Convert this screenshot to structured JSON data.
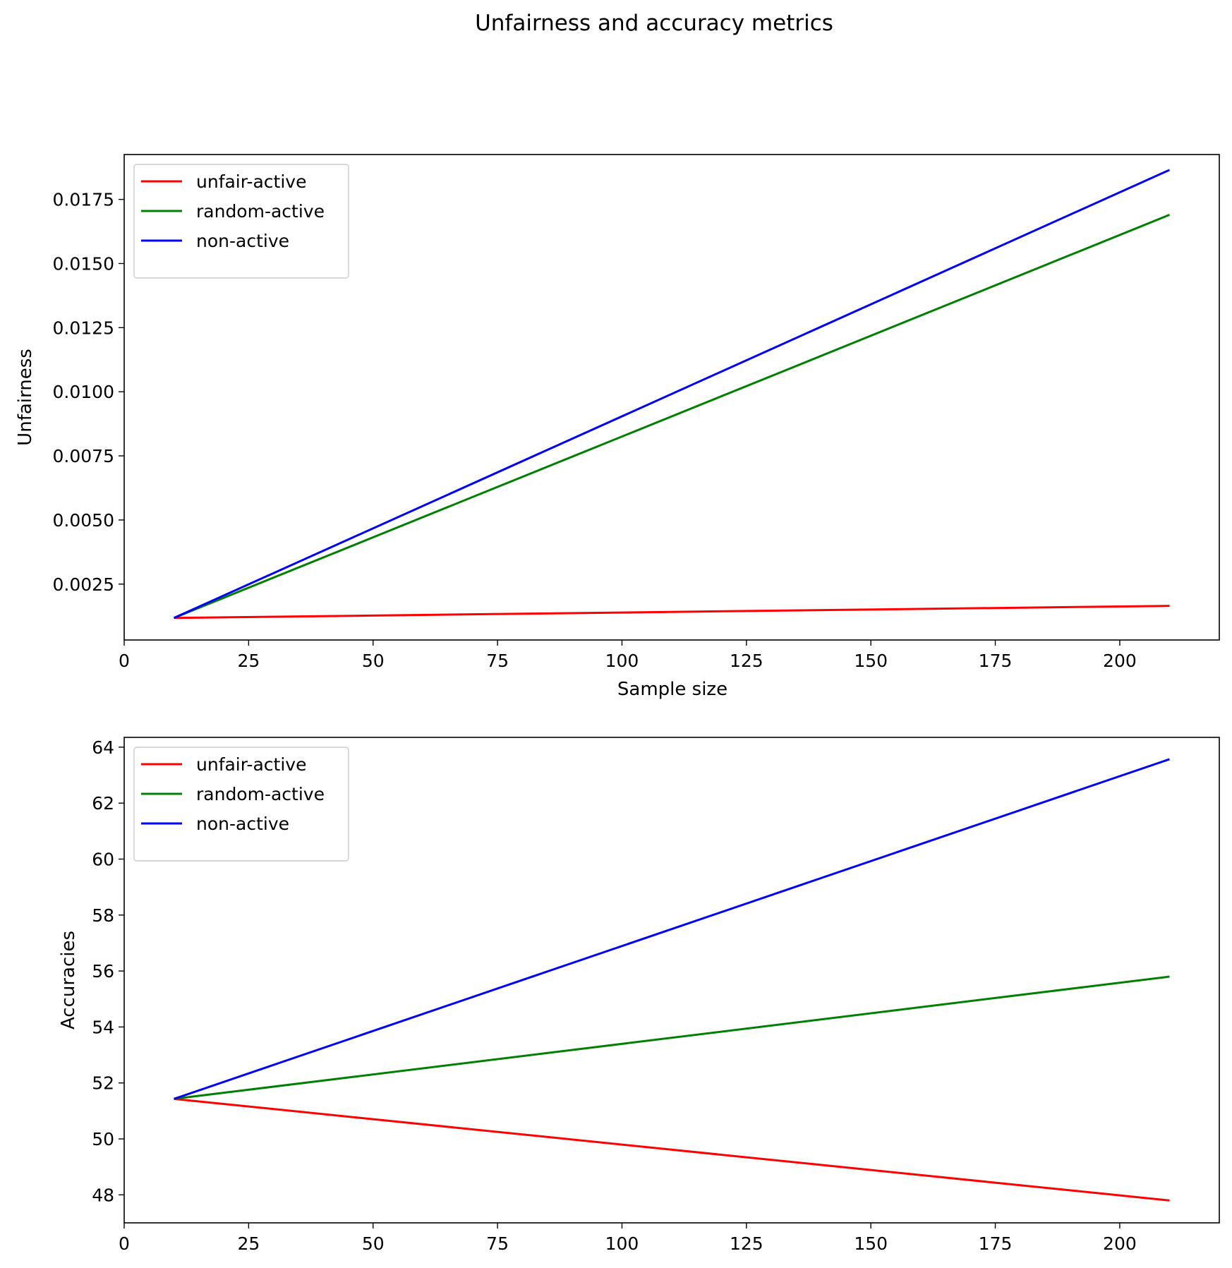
{
  "figure": {
    "title": "Unfairness and accuracy metrics"
  },
  "chart_data": [
    {
      "type": "line",
      "x": [
        10,
        210
      ],
      "xlim": [
        0,
        220
      ],
      "ylim": [
        0.00032,
        0.01925
      ],
      "xlabel": "Sample size",
      "ylabel": "Unfairness",
      "xticks": [
        0,
        25,
        50,
        75,
        100,
        125,
        150,
        175,
        200
      ],
      "xtick_labels": [
        "0",
        "25",
        "50",
        "75",
        "100",
        "125",
        "150",
        "175",
        "200"
      ],
      "yticks": [
        0.0025,
        0.005,
        0.0075,
        0.01,
        0.0125,
        0.015,
        0.0175
      ],
      "ytick_labels": [
        "0.0025",
        "0.0050",
        "0.0075",
        "0.0100",
        "0.0125",
        "0.0150",
        "0.0175"
      ],
      "legend_position": "upper-left",
      "grid": false,
      "series": [
        {
          "name": "unfair-active",
          "color": "#ff0000",
          "values": [
            0.00118,
            0.00165
          ]
        },
        {
          "name": "random-active",
          "color": "#008000",
          "values": [
            0.00118,
            0.0169
          ]
        },
        {
          "name": "non-active",
          "color": "#0000ff",
          "values": [
            0.00118,
            0.01865
          ]
        }
      ]
    },
    {
      "type": "line",
      "x": [
        10,
        210
      ],
      "xlim": [
        0,
        220
      ],
      "ylim": [
        47.0,
        64.35
      ],
      "xlabel": "",
      "ylabel": "Accuracies",
      "xticks": [
        0,
        25,
        50,
        75,
        100,
        125,
        150,
        175,
        200
      ],
      "xtick_labels": [
        "0",
        "25",
        "50",
        "75",
        "100",
        "125",
        "150",
        "175",
        "200"
      ],
      "yticks": [
        48,
        50,
        52,
        54,
        56,
        58,
        60,
        62,
        64
      ],
      "ytick_labels": [
        "48",
        "50",
        "52",
        "54",
        "56",
        "58",
        "60",
        "62",
        "64"
      ],
      "legend_position": "upper-left",
      "grid": false,
      "series": [
        {
          "name": "unfair-active",
          "color": "#ff0000",
          "values": [
            51.43,
            47.8
          ]
        },
        {
          "name": "random-active",
          "color": "#008000",
          "values": [
            51.43,
            55.8
          ]
        },
        {
          "name": "non-active",
          "color": "#0000ff",
          "values": [
            51.43,
            63.57
          ]
        }
      ]
    }
  ]
}
